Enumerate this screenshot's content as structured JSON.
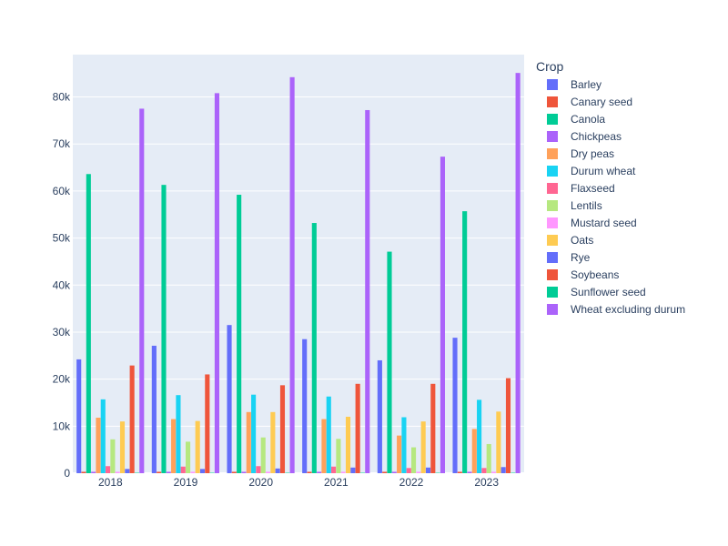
{
  "chart_data": {
    "type": "bar",
    "title": "",
    "xlabel": "",
    "ylabel": "",
    "ylim": [
      0,
      89000
    ],
    "yticks": [
      0,
      10000,
      20000,
      30000,
      40000,
      50000,
      60000,
      70000,
      80000
    ],
    "ytick_labels": [
      "0",
      "10k",
      "20k",
      "30k",
      "40k",
      "50k",
      "60k",
      "70k",
      "80k"
    ],
    "categories": [
      "2018",
      "2019",
      "2020",
      "2021",
      "2022",
      "2023"
    ],
    "grid": true,
    "legend": {
      "title": "Crop",
      "placement": "right"
    },
    "series": [
      {
        "name": "Barley",
        "color": "#636efa",
        "values": [
          24200,
          27100,
          31500,
          28500,
          24000,
          28800
        ]
      },
      {
        "name": "Canary seed",
        "color": "#EF553B",
        "values": [
          300,
          300,
          300,
          300,
          300,
          300
        ]
      },
      {
        "name": "Canola",
        "color": "#00cc96",
        "values": [
          63600,
          61300,
          59200,
          53200,
          47100,
          55700
        ]
      },
      {
        "name": "Chickpeas",
        "color": "#ab63fa",
        "values": [
          300,
          300,
          300,
          300,
          300,
          300
        ]
      },
      {
        "name": "Dry peas",
        "color": "#FFA15A",
        "values": [
          11800,
          11500,
          13000,
          11500,
          8000,
          9400
        ]
      },
      {
        "name": "Durum wheat",
        "color": "#19d3f3",
        "values": [
          15700,
          16600,
          16700,
          16300,
          11900,
          15600
        ]
      },
      {
        "name": "Flaxseed",
        "color": "#FF6692",
        "values": [
          1500,
          1400,
          1500,
          1400,
          1100,
          1100
        ]
      },
      {
        "name": "Lentils",
        "color": "#B6E880",
        "values": [
          7200,
          6700,
          7600,
          7300,
          5500,
          6200
        ]
      },
      {
        "name": "Mustard seed",
        "color": "#FF97FF",
        "values": [
          300,
          300,
          300,
          300,
          300,
          300
        ]
      },
      {
        "name": "Oats",
        "color": "#FECB52",
        "values": [
          11000,
          11100,
          13000,
          12000,
          11000,
          13100
        ]
      },
      {
        "name": "Rye",
        "color": "#636efa",
        "values": [
          900,
          900,
          1000,
          1200,
          1200,
          1300
        ]
      },
      {
        "name": "Soybeans",
        "color": "#EF553B",
        "values": [
          22900,
          21000,
          18700,
          19000,
          19000,
          20200
        ]
      },
      {
        "name": "Sunflower seed",
        "color": "#00cc96",
        "values": [
          100,
          100,
          100,
          100,
          100,
          100
        ]
      },
      {
        "name": "Wheat excluding durum",
        "color": "#ab63fa",
        "values": [
          77500,
          80800,
          84200,
          77200,
          67300,
          85100
        ]
      }
    ]
  }
}
